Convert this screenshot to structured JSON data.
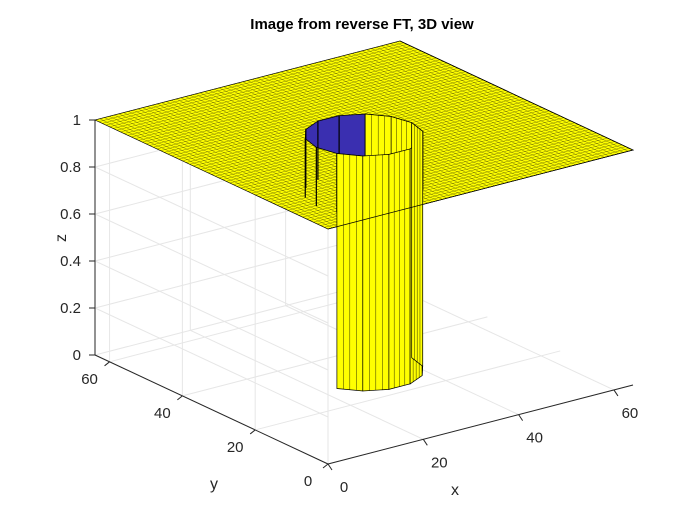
{
  "chart_data": {
    "type": "surface",
    "title": "Image from reverse FT, 3D view",
    "xlabel": "x",
    "ylabel": "y",
    "zlabel": "z",
    "xlim": [
      0,
      64
    ],
    "ylim": [
      0,
      64
    ],
    "zlim": [
      0,
      1
    ],
    "x_ticks": [
      "0",
      "20",
      "40",
      "60"
    ],
    "y_ticks": [
      "0",
      "20",
      "40",
      "60"
    ],
    "z_ticks": [
      "0",
      "0.2",
      "0.4",
      "0.6",
      "0.8",
      "1"
    ],
    "grid": true,
    "surface": {
      "description_values": {
        "plateau_z": 1,
        "hole_z": 0,
        "hole_center": [
          32,
          32
        ],
        "hole_radius": 10
      }
    },
    "colors": {
      "plateau": "#ffff00",
      "hole_floor": "#3a2fb0",
      "edges": "#000000",
      "grid": "#e6e6e6",
      "axis": "#262626"
    }
  }
}
